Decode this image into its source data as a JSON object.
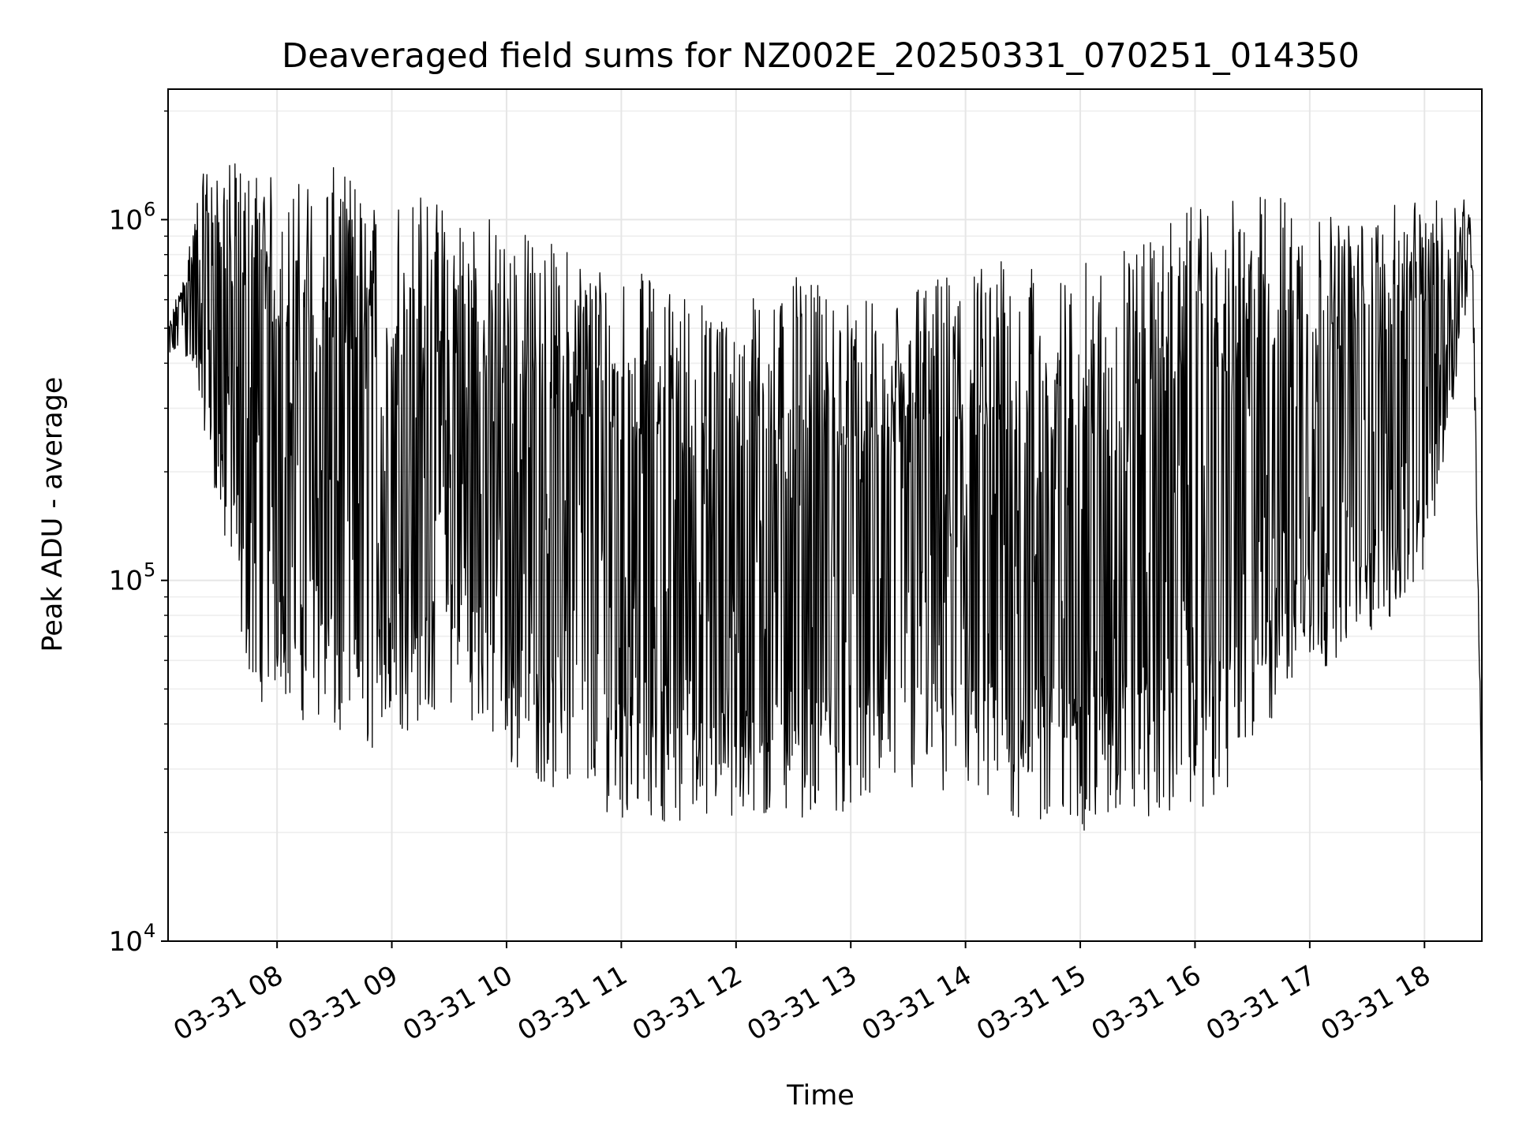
{
  "chart_data": {
    "type": "line",
    "title": "Deaveraged field sums for NZ002E_20250331_070251_014350",
    "xlabel": "Time",
    "ylabel": "Peak ADU - average",
    "yscale": "log",
    "ylim": [
      10000,
      2300000
    ],
    "xlim": [
      "2025-03-31 07:03",
      "2025-03-31 18:30"
    ],
    "grid": true,
    "line_color": "#000000",
    "x_ticks": [
      {
        "value": "2025-03-31 08:00",
        "label": "03-31 08"
      },
      {
        "value": "2025-03-31 09:00",
        "label": "03-31 09"
      },
      {
        "value": "2025-03-31 10:00",
        "label": "03-31 10"
      },
      {
        "value": "2025-03-31 11:00",
        "label": "03-31 11"
      },
      {
        "value": "2025-03-31 12:00",
        "label": "03-31 12"
      },
      {
        "value": "2025-03-31 13:00",
        "label": "03-31 13"
      },
      {
        "value": "2025-03-31 14:00",
        "label": "03-31 14"
      },
      {
        "value": "2025-03-31 15:00",
        "label": "03-31 15"
      },
      {
        "value": "2025-03-31 16:00",
        "label": "03-31 16"
      },
      {
        "value": "2025-03-31 17:00",
        "label": "03-31 17"
      },
      {
        "value": "2025-03-31 18:00",
        "label": "03-31 18"
      }
    ],
    "y_ticks": [
      {
        "value": 10000,
        "base": "10",
        "exp": "4"
      },
      {
        "value": 100000,
        "base": "10",
        "exp": "5"
      },
      {
        "value": 1000000,
        "base": "10",
        "exp": "6"
      }
    ],
    "series": [
      {
        "x": [
          "2025-03-31 07:03",
          "2025-03-31 07:10",
          "2025-03-31 07:20",
          "2025-03-31 07:30",
          "2025-03-31 07:40",
          "2025-03-31 07:50",
          "2025-03-31 08:00",
          "2025-03-31 08:15",
          "2025-03-31 08:30",
          "2025-03-31 08:45",
          "2025-03-31 09:00",
          "2025-03-31 09:15",
          "2025-03-31 09:30",
          "2025-03-31 09:45",
          "2025-03-31 10:00",
          "2025-03-31 10:15",
          "2025-03-31 10:30",
          "2025-03-31 10:45",
          "2025-03-31 11:00",
          "2025-03-31 11:15",
          "2025-03-31 11:30",
          "2025-03-31 11:45",
          "2025-03-31 12:00",
          "2025-03-31 12:15",
          "2025-03-31 12:30",
          "2025-03-31 12:45",
          "2025-03-31 13:00",
          "2025-03-31 13:15",
          "2025-03-31 13:30",
          "2025-03-31 13:45",
          "2025-03-31 14:00",
          "2025-03-31 14:15",
          "2025-03-31 14:30",
          "2025-03-31 14:45",
          "2025-03-31 15:00",
          "2025-03-31 15:15",
          "2025-03-31 15:30",
          "2025-03-31 15:45",
          "2025-03-31 16:00",
          "2025-03-31 16:15",
          "2025-03-31 16:30",
          "2025-03-31 16:45",
          "2025-03-31 17:00",
          "2025-03-31 17:15",
          "2025-03-31 17:30",
          "2025-03-31 17:45",
          "2025-03-31 18:00",
          "2025-03-31 18:10",
          "2025-03-31 18:20",
          "2025-03-31 18:25",
          "2025-03-31 18:30"
        ],
        "y_high": [
          500000,
          700000,
          1300000,
          1600000,
          1400000,
          1400000,
          1300000,
          1300000,
          1400000,
          1300000,
          1200000,
          1200000,
          1100000,
          1100000,
          1000000,
          900000,
          850000,
          800000,
          750000,
          700000,
          650000,
          600000,
          600000,
          650000,
          700000,
          650000,
          600000,
          600000,
          700000,
          700000,
          750000,
          800000,
          750000,
          700000,
          750000,
          800000,
          900000,
          1000000,
          1100000,
          1100000,
          1200000,
          1200000,
          1100000,
          1000000,
          1000000,
          1100000,
          1200000,
          1100000,
          1200000,
          1000000,
          30000
        ],
        "y_low": [
          400000,
          450000,
          300000,
          150000,
          70000,
          45000,
          50000,
          40000,
          35000,
          33000,
          35000,
          40000,
          45000,
          40000,
          30000,
          28000,
          25000,
          23000,
          22000,
          22000,
          21000,
          21000,
          20000,
          21000,
          22000,
          22000,
          23000,
          24000,
          25000,
          24000,
          22000,
          21000,
          21000,
          20000,
          20000,
          20000,
          21000,
          22000,
          23000,
          25000,
          30000,
          45000,
          55000,
          60000,
          70000,
          80000,
          100000,
          200000,
          500000,
          700000,
          22000
        ]
      }
    ]
  }
}
